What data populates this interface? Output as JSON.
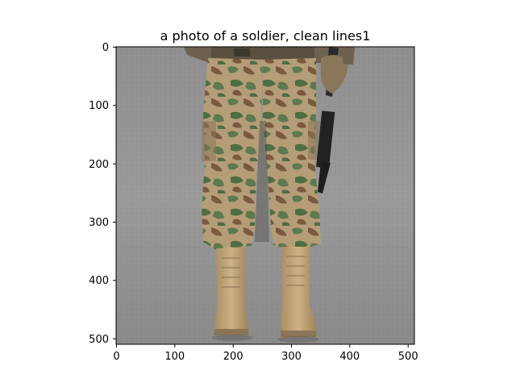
{
  "figure": {
    "title": "a photo of a soldier,  clean lines1",
    "subject": "soldier legs in camouflage trousers and tan combat boots holding a rifle on asphalt road"
  },
  "axes": {
    "xticks": [
      "0",
      "100",
      "200",
      "300",
      "400",
      "500"
    ],
    "yticks": [
      "0",
      "100",
      "200",
      "300",
      "400",
      "500"
    ],
    "x_range": [
      0,
      511
    ],
    "y_range": [
      511,
      0
    ],
    "y_inverted": true
  },
  "colors": {
    "road": "#8c8c8c",
    "camo_tan": "#b8a07a",
    "camo_green": "#5d7a4e",
    "camo_brown": "#7a5a3e",
    "boot": "#c4a77a",
    "rifle": "#2a2a2a"
  }
}
